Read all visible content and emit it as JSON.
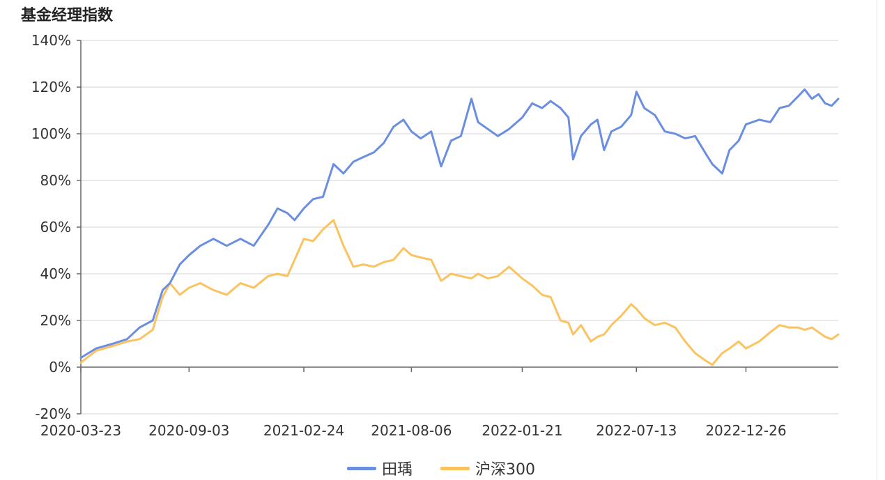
{
  "title": "基金经理指数",
  "chart_data": {
    "type": "line",
    "x_ticks": [
      "2020-03-23",
      "2020-09-03",
      "2021-02-24",
      "2021-08-06",
      "2022-01-21",
      "2022-07-13",
      "2022-12-26"
    ],
    "x_range": [
      "2020-03-23",
      "2023-05-15"
    ],
    "y_ticks": [
      "140%",
      "120%",
      "100%",
      "80%",
      "60%",
      "40%",
      "20%",
      "0%",
      "-20%"
    ],
    "ylim": [
      -20,
      140
    ],
    "grid": true,
    "legend_position": "bottom",
    "series": [
      {
        "name": "田瑀",
        "color": "#6b8ee0",
        "points": [
          [
            "2020-03-23",
            4
          ],
          [
            "2020-04-15",
            8
          ],
          [
            "2020-05-10",
            10
          ],
          [
            "2020-06-01",
            12
          ],
          [
            "2020-06-20",
            17
          ],
          [
            "2020-07-10",
            20
          ],
          [
            "2020-07-25",
            33
          ],
          [
            "2020-08-05",
            36
          ],
          [
            "2020-08-20",
            44
          ],
          [
            "2020-09-03",
            48
          ],
          [
            "2020-09-20",
            52
          ],
          [
            "2020-10-10",
            55
          ],
          [
            "2020-10-30",
            52
          ],
          [
            "2020-11-20",
            55
          ],
          [
            "2020-12-10",
            52
          ],
          [
            "2021-01-01",
            61
          ],
          [
            "2021-01-15",
            68
          ],
          [
            "2021-01-30",
            66
          ],
          [
            "2021-02-10",
            63
          ],
          [
            "2021-02-24",
            68
          ],
          [
            "2021-03-10",
            72
          ],
          [
            "2021-03-25",
            73
          ],
          [
            "2021-04-10",
            87
          ],
          [
            "2021-04-25",
            83
          ],
          [
            "2021-05-10",
            88
          ],
          [
            "2021-05-25",
            90
          ],
          [
            "2021-06-10",
            92
          ],
          [
            "2021-06-25",
            96
          ],
          [
            "2021-07-10",
            103
          ],
          [
            "2021-07-25",
            106
          ],
          [
            "2021-08-06",
            101
          ],
          [
            "2021-08-20",
            98
          ],
          [
            "2021-09-05",
            101
          ],
          [
            "2021-09-20",
            86
          ],
          [
            "2021-10-05",
            97
          ],
          [
            "2021-10-20",
            99
          ],
          [
            "2021-11-05",
            115
          ],
          [
            "2021-11-15",
            105
          ],
          [
            "2021-11-30",
            102
          ],
          [
            "2021-12-15",
            99
          ],
          [
            "2022-01-01",
            102
          ],
          [
            "2022-01-21",
            107
          ],
          [
            "2022-02-05",
            113
          ],
          [
            "2022-02-20",
            111
          ],
          [
            "2022-03-05",
            114
          ],
          [
            "2022-03-20",
            111
          ],
          [
            "2022-04-01",
            107
          ],
          [
            "2022-04-08",
            89
          ],
          [
            "2022-04-20",
            99
          ],
          [
            "2022-05-05",
            104
          ],
          [
            "2022-05-15",
            106
          ],
          [
            "2022-05-25",
            93
          ],
          [
            "2022-06-05",
            101
          ],
          [
            "2022-06-20",
            103
          ],
          [
            "2022-07-05",
            108
          ],
          [
            "2022-07-13",
            118
          ],
          [
            "2022-07-25",
            111
          ],
          [
            "2022-08-10",
            108
          ],
          [
            "2022-08-25",
            101
          ],
          [
            "2022-09-10",
            100
          ],
          [
            "2022-09-25",
            98
          ],
          [
            "2022-10-10",
            99
          ],
          [
            "2022-10-25",
            92
          ],
          [
            "2022-11-05",
            87
          ],
          [
            "2022-11-20",
            83
          ],
          [
            "2022-12-01",
            93
          ],
          [
            "2022-12-15",
            97
          ],
          [
            "2022-12-26",
            104
          ],
          [
            "2023-01-15",
            106
          ],
          [
            "2023-02-01",
            105
          ],
          [
            "2023-02-15",
            111
          ],
          [
            "2023-03-01",
            112
          ],
          [
            "2023-03-15",
            116
          ],
          [
            "2023-03-25",
            119
          ],
          [
            "2023-04-05",
            115
          ],
          [
            "2023-04-15",
            117
          ],
          [
            "2023-04-25",
            113
          ],
          [
            "2023-05-05",
            112
          ],
          [
            "2023-05-15",
            115
          ]
        ]
      },
      {
        "name": "沪深300",
        "color": "#fbc35f",
        "points": [
          [
            "2020-03-23",
            2
          ],
          [
            "2020-04-15",
            7
          ],
          [
            "2020-05-10",
            9
          ],
          [
            "2020-06-01",
            11
          ],
          [
            "2020-06-20",
            12
          ],
          [
            "2020-07-10",
            16
          ],
          [
            "2020-07-25",
            30
          ],
          [
            "2020-08-05",
            36
          ],
          [
            "2020-08-20",
            31
          ],
          [
            "2020-09-03",
            34
          ],
          [
            "2020-09-20",
            36
          ],
          [
            "2020-10-10",
            33
          ],
          [
            "2020-10-30",
            31
          ],
          [
            "2020-11-20",
            36
          ],
          [
            "2020-12-10",
            34
          ],
          [
            "2021-01-01",
            39
          ],
          [
            "2021-01-15",
            40
          ],
          [
            "2021-01-30",
            39
          ],
          [
            "2021-02-10",
            46
          ],
          [
            "2021-02-24",
            55
          ],
          [
            "2021-03-10",
            54
          ],
          [
            "2021-03-25",
            59
          ],
          [
            "2021-04-10",
            63
          ],
          [
            "2021-04-25",
            52
          ],
          [
            "2021-05-10",
            43
          ],
          [
            "2021-05-25",
            44
          ],
          [
            "2021-06-10",
            43
          ],
          [
            "2021-06-25",
            45
          ],
          [
            "2021-07-10",
            46
          ],
          [
            "2021-07-25",
            51
          ],
          [
            "2021-08-06",
            48
          ],
          [
            "2021-08-20",
            47
          ],
          [
            "2021-09-05",
            46
          ],
          [
            "2021-09-20",
            37
          ],
          [
            "2021-10-05",
            40
          ],
          [
            "2021-10-20",
            39
          ],
          [
            "2021-11-05",
            38
          ],
          [
            "2021-11-15",
            40
          ],
          [
            "2021-11-30",
            38
          ],
          [
            "2021-12-15",
            39
          ],
          [
            "2022-01-01",
            43
          ],
          [
            "2022-01-21",
            38
          ],
          [
            "2022-02-05",
            35
          ],
          [
            "2022-02-20",
            31
          ],
          [
            "2022-03-05",
            30
          ],
          [
            "2022-03-20",
            20
          ],
          [
            "2022-04-01",
            19
          ],
          [
            "2022-04-08",
            14
          ],
          [
            "2022-04-20",
            18
          ],
          [
            "2022-05-05",
            11
          ],
          [
            "2022-05-15",
            13
          ],
          [
            "2022-05-25",
            14
          ],
          [
            "2022-06-05",
            18
          ],
          [
            "2022-06-20",
            22
          ],
          [
            "2022-07-05",
            27
          ],
          [
            "2022-07-13",
            25
          ],
          [
            "2022-07-25",
            21
          ],
          [
            "2022-08-10",
            18
          ],
          [
            "2022-08-25",
            19
          ],
          [
            "2022-09-10",
            17
          ],
          [
            "2022-09-25",
            11
          ],
          [
            "2022-10-10",
            6
          ],
          [
            "2022-10-25",
            3
          ],
          [
            "2022-11-05",
            1
          ],
          [
            "2022-11-20",
            6
          ],
          [
            "2022-12-01",
            8
          ],
          [
            "2022-12-15",
            11
          ],
          [
            "2022-12-26",
            8
          ],
          [
            "2023-01-15",
            11
          ],
          [
            "2023-02-01",
            15
          ],
          [
            "2023-02-15",
            18
          ],
          [
            "2023-03-01",
            17
          ],
          [
            "2023-03-15",
            17
          ],
          [
            "2023-03-25",
            16
          ],
          [
            "2023-04-05",
            17
          ],
          [
            "2023-04-15",
            15
          ],
          [
            "2023-04-25",
            13
          ],
          [
            "2023-05-05",
            12
          ],
          [
            "2023-05-15",
            14
          ]
        ]
      }
    ]
  }
}
